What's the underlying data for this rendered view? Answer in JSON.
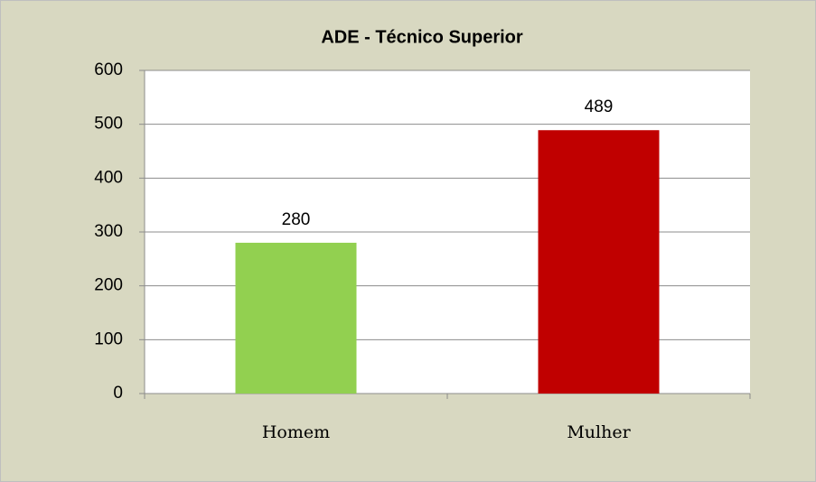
{
  "chart_data": {
    "type": "bar",
    "title": "ADE - Técnico Superior",
    "categories": [
      "Homem",
      "Mulher"
    ],
    "values": [
      280,
      489
    ],
    "colors": [
      "#92d050",
      "#c00000"
    ],
    "ylim": [
      0,
      600
    ],
    "yticks": [
      0,
      100,
      200,
      300,
      400,
      500,
      600
    ],
    "grid": true,
    "data_labels": true
  }
}
